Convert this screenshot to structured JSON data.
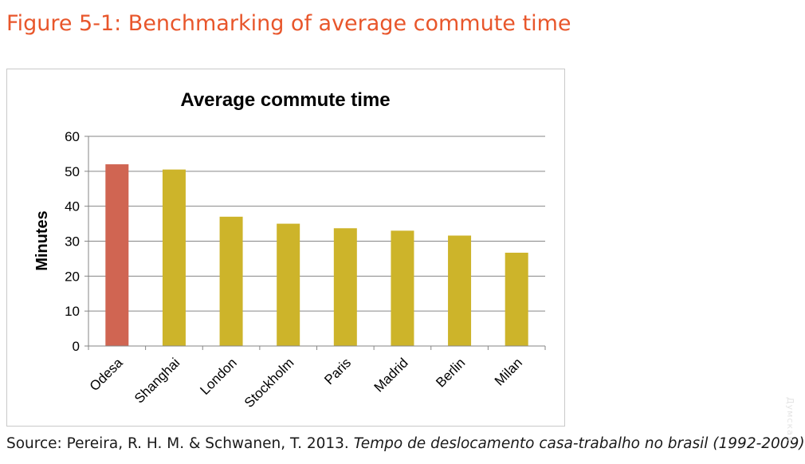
{
  "figure": {
    "title": "Figure 5-1: Benchmarking of average commute time",
    "source_prefix": "Source: Pereira, R. H. M. & Schwanen, T. 2013. ",
    "source_title": "Tempo de deslocamento casa-trabalho no brasil (1992-2009)",
    "watermark": "Думская"
  },
  "colors": {
    "title": "#e8562b",
    "highlight_bar": "#d06552",
    "bar": "#cdb42a",
    "grid": "#868686"
  },
  "chart_data": {
    "type": "bar",
    "title": "Average commute time",
    "xlabel": "",
    "ylabel": "Minutes",
    "categories": [
      "Odesa",
      "Shanghai",
      "London",
      "Stockholm",
      "Paris",
      "Madrid",
      "Berlin",
      "Milan"
    ],
    "values": [
      52,
      50.5,
      37,
      35,
      33.7,
      33,
      31.6,
      26.7
    ],
    "highlight_category": "Odesa",
    "ylim": [
      0,
      60
    ],
    "yticks": [
      0,
      10,
      20,
      30,
      40,
      50,
      60
    ],
    "grid": true,
    "legend": "none"
  }
}
